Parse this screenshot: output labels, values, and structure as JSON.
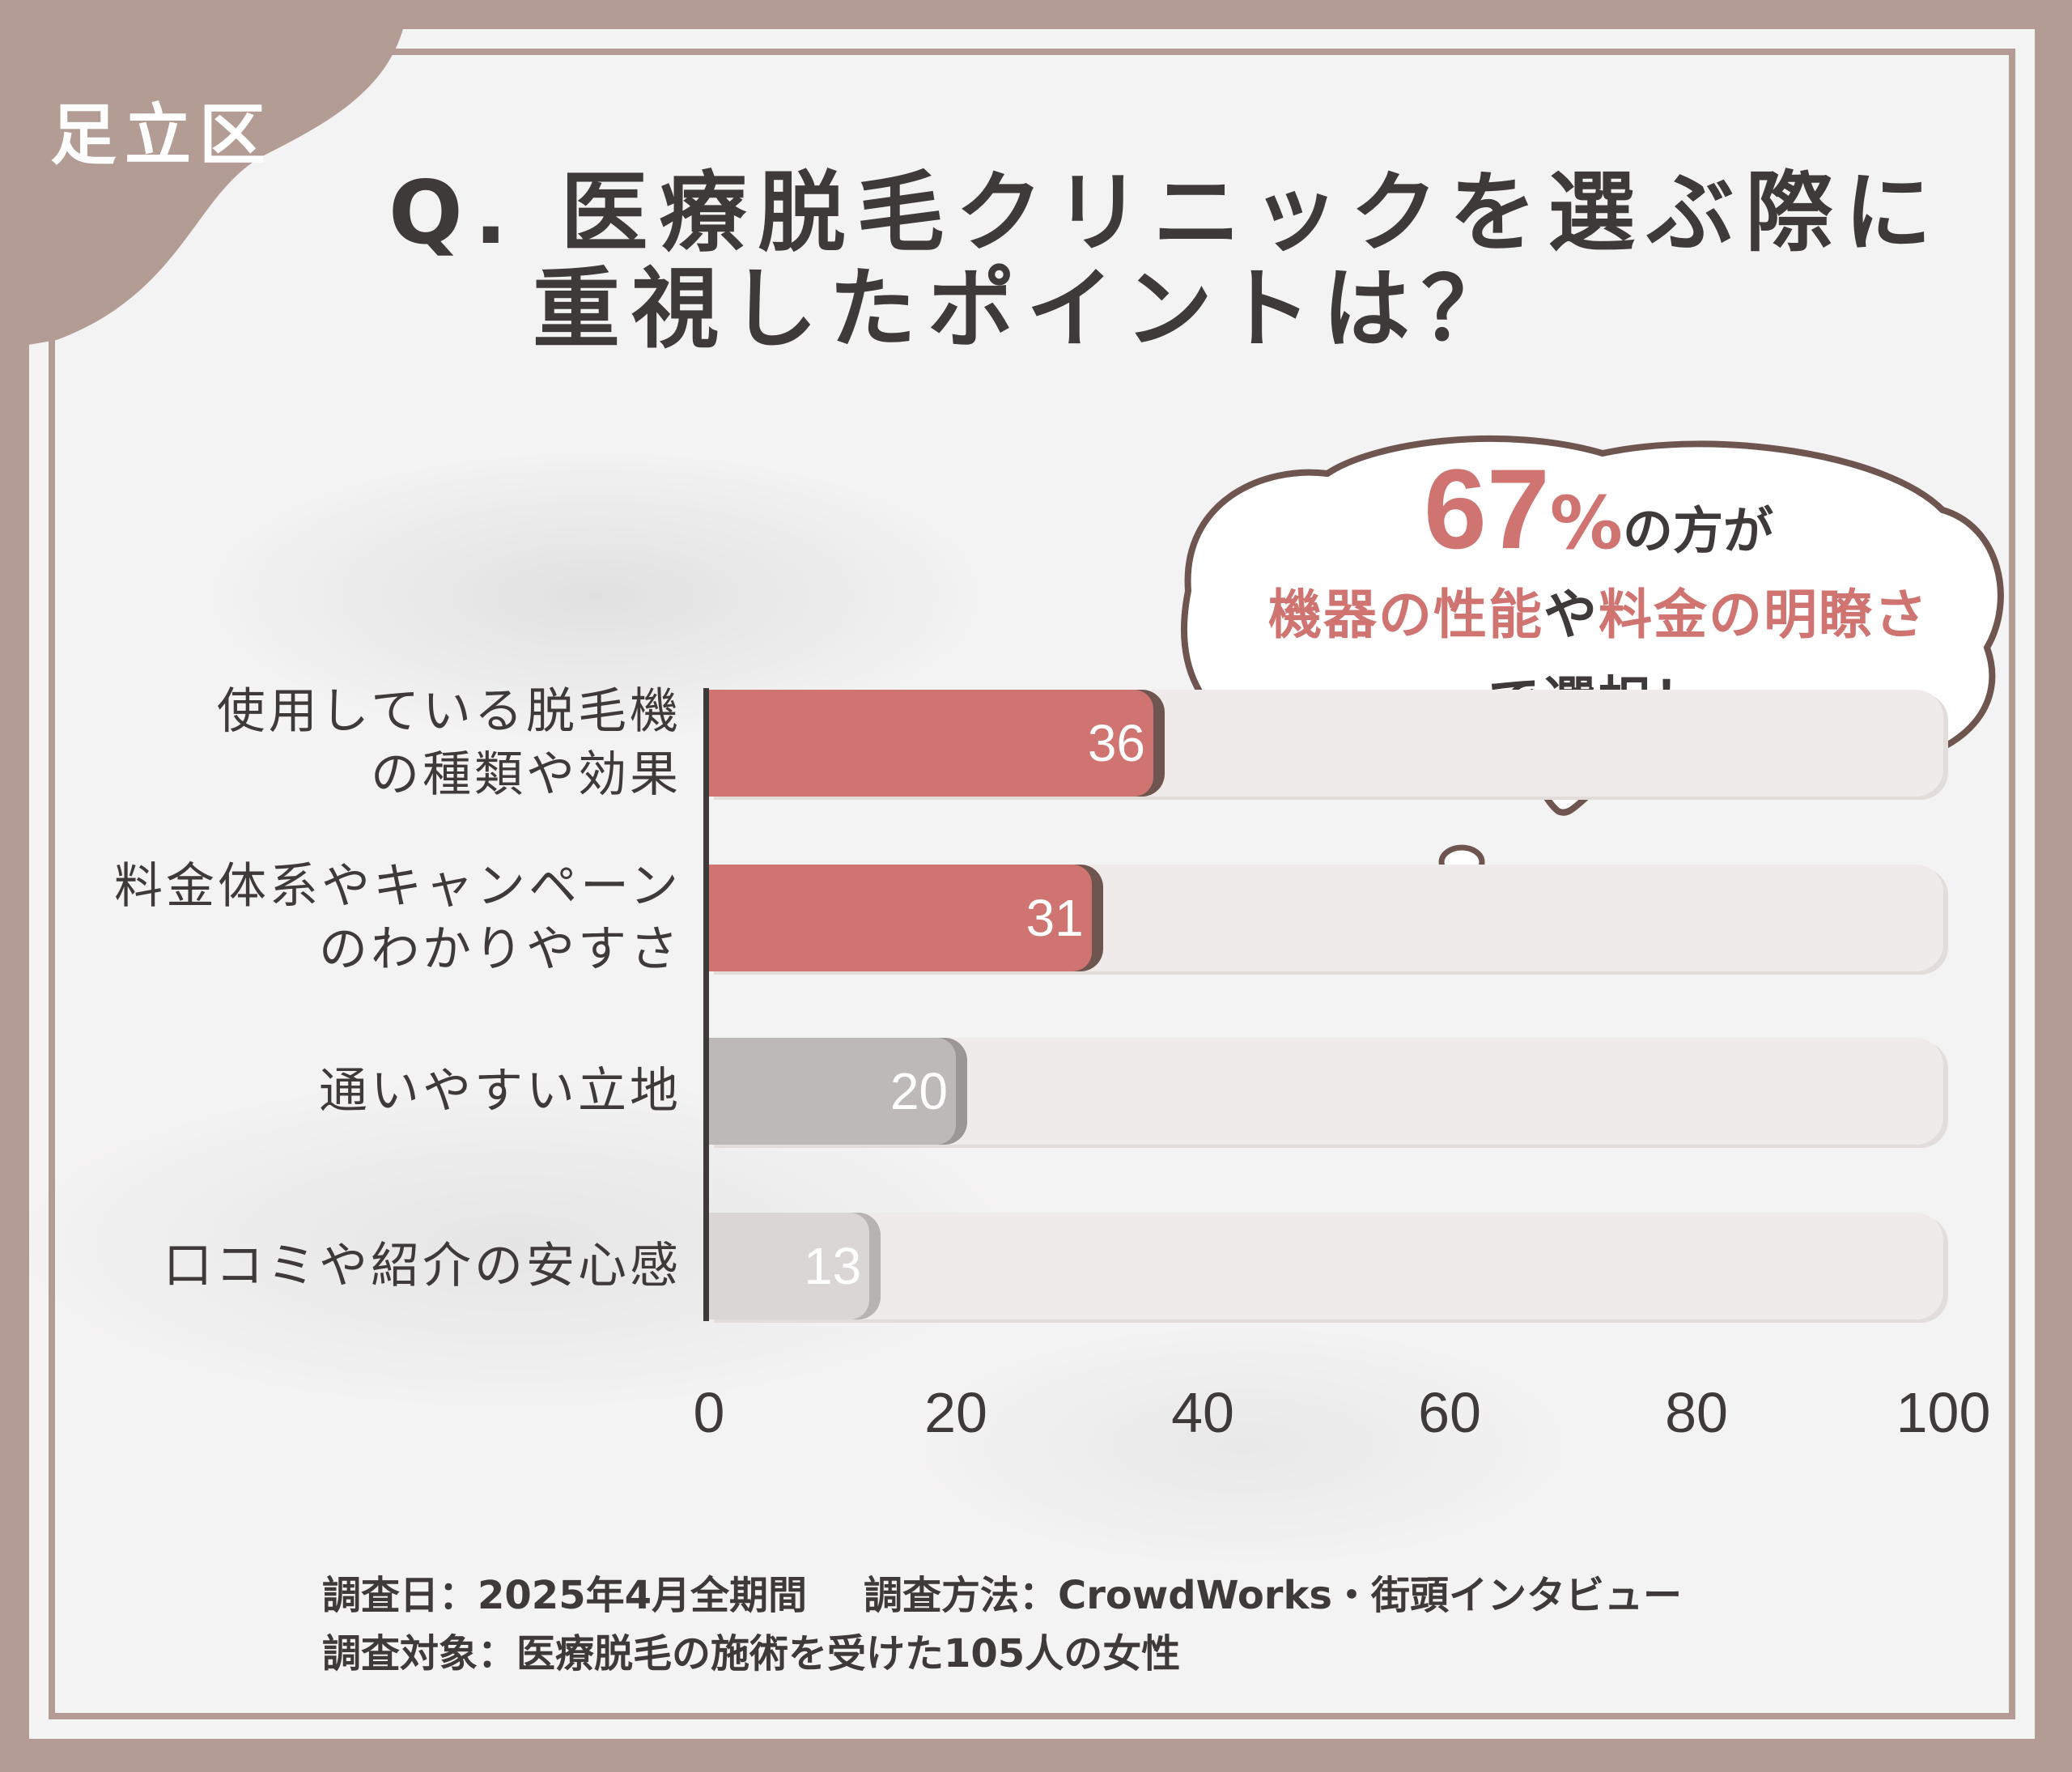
{
  "region_tag": "足立区",
  "title": {
    "line1": "Q. 医療脱毛クリニックを選ぶ際に",
    "line2": "重視したポイントは？"
  },
  "callout": {
    "percent": "67",
    "percent_sign": "%",
    "after_percent": "の方が",
    "highlight1": "機器の性能",
    "connector": "や",
    "highlight2": "料金の明瞭さ",
    "line3": "で選択！"
  },
  "chart_data": {
    "type": "bar",
    "orientation": "horizontal",
    "categories": [
      [
        "使用している脱毛機",
        "の種類や効果"
      ],
      [
        "料金体系やキャンペーン",
        "のわかりやすさ"
      ],
      [
        "通いやすい立地"
      ],
      [
        "口コミや紹介の安心感"
      ]
    ],
    "values": [
      36,
      31,
      20,
      13
    ],
    "bar_colors": [
      "#cf7471",
      "#cf7471",
      "#bdb9b8",
      "#d9d6d5"
    ],
    "bar_shadow_colors": [
      "#6f5550",
      "#6f5550",
      "#9c9796",
      "#b7b3b2"
    ],
    "xlim": [
      0,
      100
    ],
    "xticks": [
      "0",
      "20",
      "40",
      "60",
      "80",
      "100"
    ],
    "grid": false
  },
  "footer": {
    "date_label": "調査日：2025年4月全期間",
    "method_label": "調査方法：CrowdWorks・街頭インタビュー",
    "target_label": "調査対象：医療脱毛の施術を受けた105人の女性"
  },
  "colors": {
    "frame": "#b39c94",
    "accent": "#cf7471",
    "text": "#3e3a39"
  }
}
